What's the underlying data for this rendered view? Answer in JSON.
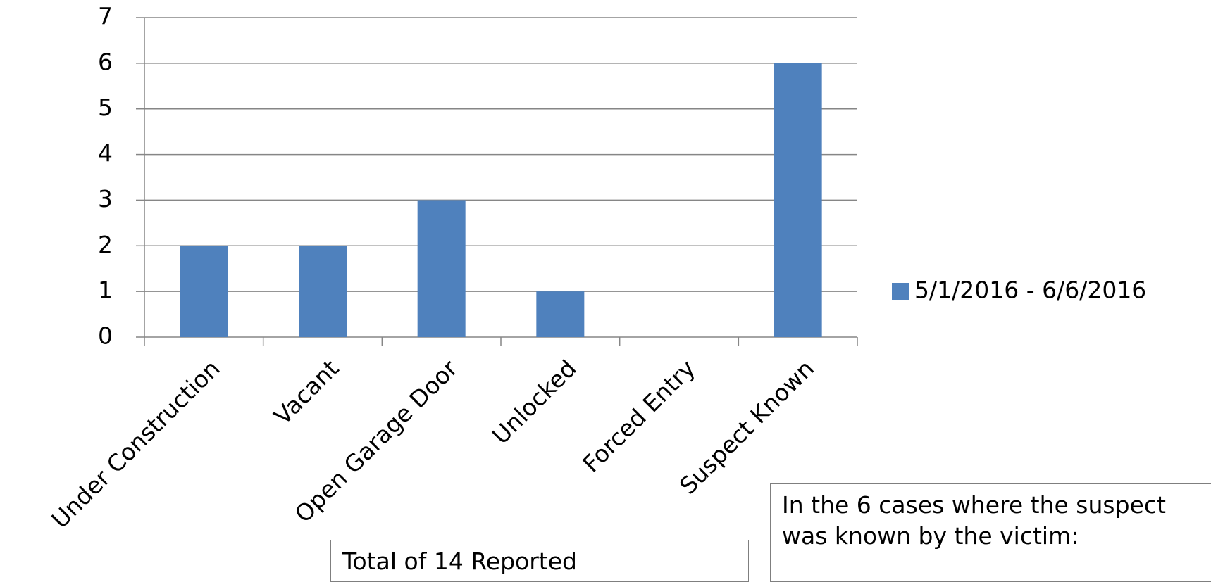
{
  "chart_data": {
    "type": "bar",
    "categories": [
      "Under Construction",
      "Vacant",
      "Open Garage Door",
      "Unlocked",
      "Forced Entry",
      "Suspect Known"
    ],
    "series": [
      {
        "name": "5/1/2016 - 6/6/2016",
        "color": "#4f81bd",
        "values": [
          2,
          2,
          3,
          1,
          0,
          6
        ]
      }
    ],
    "ylim": [
      0,
      7
    ],
    "yticks": [
      0,
      1,
      2,
      3,
      4,
      5,
      6,
      7
    ],
    "grid": true,
    "legend": "right",
    "annotations": [
      "Total of 14 Reported",
      "In the 6 cases where the suspect",
      "was known by the victim:"
    ]
  }
}
